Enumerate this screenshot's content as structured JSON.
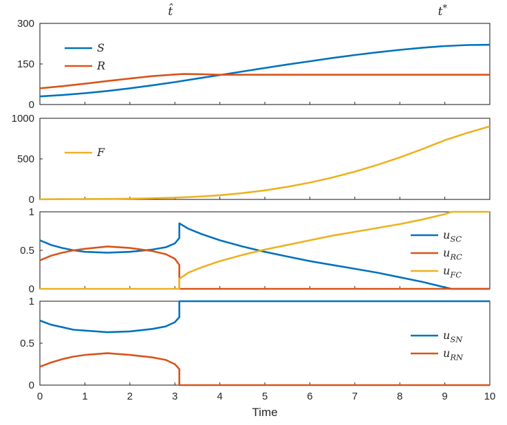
{
  "figure": {
    "background": "#ffffff",
    "axis_color": "#262626",
    "xlabel": "Time",
    "xlim": [
      0,
      10
    ],
    "xticks": [
      0,
      1,
      2,
      3,
      4,
      5,
      6,
      7,
      8,
      9,
      10
    ],
    "xtick_labels": [
      "0",
      "1",
      "2",
      "3",
      "4",
      "5",
      "6",
      "7",
      "8",
      "9",
      "10"
    ],
    "annotations": [
      {
        "text": "t̂",
        "x": 2.9
      },
      {
        "text": "t*",
        "x": 8.95
      }
    ],
    "colors": {
      "blue": "#0072BD",
      "orange": "#D95319",
      "yellow": "#EDB120"
    }
  },
  "chart_data": [
    {
      "type": "line",
      "ylim": [
        0,
        300
      ],
      "yticks": [
        0,
        150,
        300
      ],
      "ytick_labels": [
        "0",
        "150",
        "300"
      ],
      "legend": {
        "side": "left",
        "dy": 36,
        "entries": [
          "S",
          "R"
        ]
      },
      "series": [
        {
          "name": "S",
          "color": "#0072BD",
          "x": [
            0,
            0.5,
            1,
            1.5,
            2,
            2.5,
            3,
            3.5,
            4,
            4.5,
            5,
            5.5,
            6,
            6.5,
            7,
            7.5,
            8,
            8.5,
            9,
            9.5,
            10
          ],
          "y": [
            30,
            35,
            42,
            50,
            60,
            71,
            83,
            96,
            109,
            122,
            135,
            148,
            160,
            172,
            183,
            193,
            202,
            210,
            216,
            220,
            221
          ]
        },
        {
          "name": "R",
          "color": "#D95319",
          "x": [
            0,
            0.5,
            1,
            1.5,
            2,
            2.5,
            3,
            3.2,
            3.6,
            4,
            10
          ],
          "y": [
            60,
            68,
            77,
            87,
            96,
            105,
            111,
            113,
            112,
            110,
            110
          ]
        }
      ]
    },
    {
      "type": "line",
      "ylim": [
        0,
        1000
      ],
      "yticks": [
        0,
        500,
        1000
      ],
      "ytick_labels": [
        "0",
        "500",
        "1000"
      ],
      "legend": {
        "side": "left",
        "dy": 50,
        "entries": [
          "F"
        ]
      },
      "series": [
        {
          "name": "F",
          "color": "#EDB120",
          "x": [
            0,
            0.5,
            1,
            1.5,
            2,
            2.5,
            3,
            3.5,
            4,
            4.5,
            5,
            5.5,
            6,
            6.5,
            7,
            7.5,
            8,
            8.5,
            9,
            9.5,
            10
          ],
          "y": [
            2,
            3,
            4,
            6,
            9,
            14,
            22,
            34,
            52,
            78,
            112,
            155,
            208,
            270,
            342,
            425,
            518,
            620,
            730,
            820,
            900
          ]
        }
      ]
    },
    {
      "type": "line",
      "ylim": [
        0,
        1
      ],
      "yticks": [
        0,
        0.5,
        1
      ],
      "ytick_labels": [
        "0",
        "0.5",
        "1"
      ],
      "legend": {
        "side": "right",
        "dy": 34,
        "entries": [
          "u_SC",
          "u_RC",
          "u_FC"
        ]
      },
      "series": [
        {
          "name": "u_SC",
          "color": "#0072BD",
          "x": [
            0,
            0.25,
            0.5,
            0.75,
            1,
            1.5,
            2,
            2.5,
            2.8,
            3,
            3.1,
            3.1,
            3.3,
            3.6,
            4,
            4.5,
            5,
            5.5,
            6,
            6.5,
            7,
            7.5,
            8,
            8.5,
            9,
            9.15,
            10
          ],
          "y": [
            0.63,
            0.57,
            0.53,
            0.5,
            0.48,
            0.47,
            0.48,
            0.51,
            0.54,
            0.59,
            0.66,
            0.85,
            0.78,
            0.71,
            0.63,
            0.55,
            0.48,
            0.42,
            0.36,
            0.31,
            0.26,
            0.21,
            0.15,
            0.09,
            0.02,
            0,
            0
          ]
        },
        {
          "name": "u_RC",
          "color": "#D95319",
          "x": [
            0,
            0.25,
            0.5,
            0.75,
            1,
            1.5,
            2,
            2.5,
            2.8,
            3,
            3.1,
            3.1,
            10
          ],
          "y": [
            0.37,
            0.43,
            0.47,
            0.5,
            0.52,
            0.55,
            0.53,
            0.49,
            0.45,
            0.39,
            0.31,
            0,
            0
          ]
        },
        {
          "name": "u_FC",
          "color": "#EDB120",
          "x": [
            0,
            3.1,
            3.1,
            3.3,
            3.6,
            4,
            4.5,
            5,
            5.5,
            6,
            6.5,
            7,
            7.5,
            8,
            8.5,
            9,
            9.15,
            10
          ],
          "y": [
            0,
            0,
            0.13,
            0.21,
            0.28,
            0.36,
            0.44,
            0.51,
            0.57,
            0.63,
            0.69,
            0.74,
            0.79,
            0.84,
            0.9,
            0.97,
            1,
            1
          ]
        }
      ]
    },
    {
      "type": "line",
      "ylim": [
        0,
        1
      ],
      "yticks": [
        0,
        0.5,
        1
      ],
      "ytick_labels": [
        "0",
        "0.5",
        "1"
      ],
      "legend": {
        "side": "right",
        "dy": 50,
        "entries": [
          "u_SN",
          "u_RN"
        ]
      },
      "series": [
        {
          "name": "u_SN",
          "color": "#0072BD",
          "x": [
            0,
            0.25,
            0.5,
            0.75,
            1,
            1.5,
            2,
            2.5,
            2.8,
            3,
            3.1,
            3.1,
            10
          ],
          "y": [
            0.77,
            0.72,
            0.69,
            0.66,
            0.65,
            0.63,
            0.64,
            0.67,
            0.7,
            0.75,
            0.81,
            1,
            1
          ]
        },
        {
          "name": "u_RN",
          "color": "#D95319",
          "x": [
            0,
            0.25,
            0.5,
            0.75,
            1,
            1.5,
            2,
            2.5,
            2.8,
            3,
            3.1,
            3.1,
            10
          ],
          "y": [
            0.22,
            0.27,
            0.31,
            0.34,
            0.36,
            0.38,
            0.36,
            0.33,
            0.3,
            0.25,
            0.19,
            0,
            0
          ]
        }
      ]
    }
  ]
}
